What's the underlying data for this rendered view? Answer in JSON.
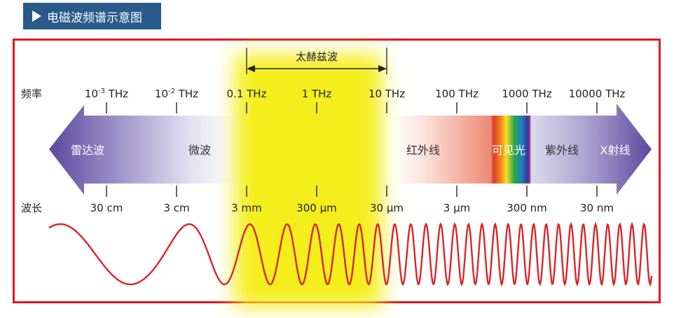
{
  "header": {
    "title": "电磁波频谱示意图",
    "icon": "play-triangle-icon"
  },
  "diagram": {
    "terahertz_label": "太赫兹波",
    "frequency_axis_label": "频率",
    "wavelength_axis_label": "波长",
    "frequencies": [
      {
        "base": "10",
        "sup": "-3",
        "unit": " THz"
      },
      {
        "base": "10",
        "sup": "-2",
        "unit": " THz"
      },
      {
        "base": "0.1",
        "sup": "",
        "unit": " THz"
      },
      {
        "base": "1",
        "sup": "",
        "unit": " THz"
      },
      {
        "base": "10",
        "sup": "",
        "unit": " THz"
      },
      {
        "base": "100",
        "sup": "",
        "unit": " THz"
      },
      {
        "base": "1000",
        "sup": "",
        "unit": " THz"
      },
      {
        "base": "10000",
        "sup": "",
        "unit": " THz"
      }
    ],
    "wavelengths": [
      "30 cm",
      "3 cm",
      "3 mm",
      "300 µm",
      "30 µm",
      "3 µm",
      "300 nm",
      "30 nm"
    ],
    "bands": [
      {
        "label": "雷达波",
        "color": "#ffffff"
      },
      {
        "label": "微波",
        "color": "#333333"
      },
      {
        "label": "红外线",
        "color": "#333333"
      },
      {
        "label": "可见光",
        "color": "#ffffff"
      },
      {
        "label": "紫外线",
        "color": "#333333"
      },
      {
        "label": "X射线",
        "color": "#ffffff"
      }
    ],
    "colors": {
      "frame": "#e8141c",
      "title_bg": "#285a8c",
      "terahertz_highlight": "#f4ee1c",
      "wave": "#d8262a",
      "band_purple": "#5b4a9e",
      "band_red": "#e03a2a"
    }
  }
}
